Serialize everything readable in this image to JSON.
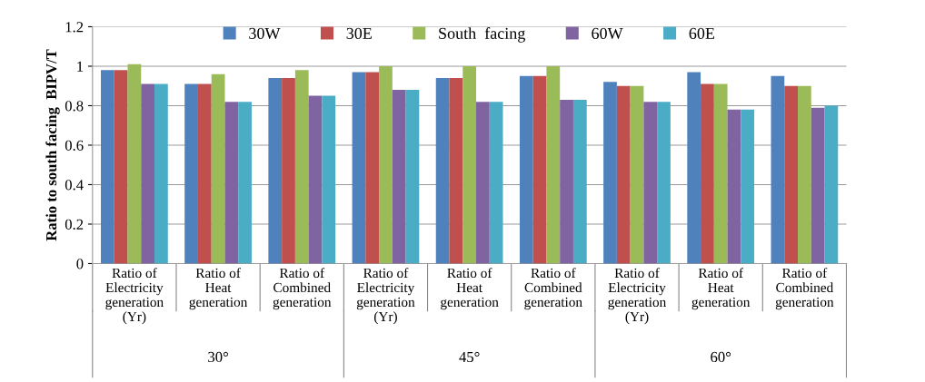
{
  "chart_data": {
    "type": "bar",
    "ylabel": "Ratio to south facing  BIPV/T",
    "categories": [
      "Ratio of\nElectricity\ngeneration\n(Yr)",
      "Ratio of\nHeat\ngeneration",
      "Ratio of\nCombined\ngeneration",
      "Ratio of\nElectricity\ngeneration\n(Yr)",
      "Ratio of\nHeat\ngeneration",
      "Ratio of\nCombined\ngeneration",
      "Ratio of\nElectricity\ngeneration\n(Yr)",
      "Ratio of\nHeat\ngeneration",
      "Ratio of\nCombined\ngeneration"
    ],
    "series": [
      {
        "name": "30W",
        "color": "#4f81bd",
        "values": [
          0.98,
          0.91,
          0.94,
          0.97,
          0.94,
          0.95,
          0.92,
          0.97,
          0.95
        ]
      },
      {
        "name": "30E",
        "color": "#c0504d",
        "values": [
          0.98,
          0.91,
          0.94,
          0.97,
          0.94,
          0.95,
          0.9,
          0.91,
          0.9
        ]
      },
      {
        "name": "South  facing",
        "color": "#9bbb59",
        "values": [
          1.01,
          0.96,
          0.98,
          1.0,
          1.0,
          1.0,
          0.9,
          0.91,
          0.9
        ]
      },
      {
        "name": "60W",
        "color": "#8064a2",
        "values": [
          0.91,
          0.82,
          0.85,
          0.88,
          0.82,
          0.83,
          0.82,
          0.78,
          0.79
        ]
      },
      {
        "name": "60E",
        "color": "#4bacc6",
        "values": [
          0.91,
          0.82,
          0.85,
          0.88,
          0.82,
          0.83,
          0.82,
          0.78,
          0.8
        ]
      }
    ],
    "annotations": [
      "30°",
      "45°",
      "60°"
    ],
    "ylim": [
      0,
      1.2
    ],
    "yticks": [
      0,
      0.2,
      0.4,
      0.6,
      0.8,
      1,
      1.2
    ],
    "grid": "y",
    "legend": "top"
  }
}
